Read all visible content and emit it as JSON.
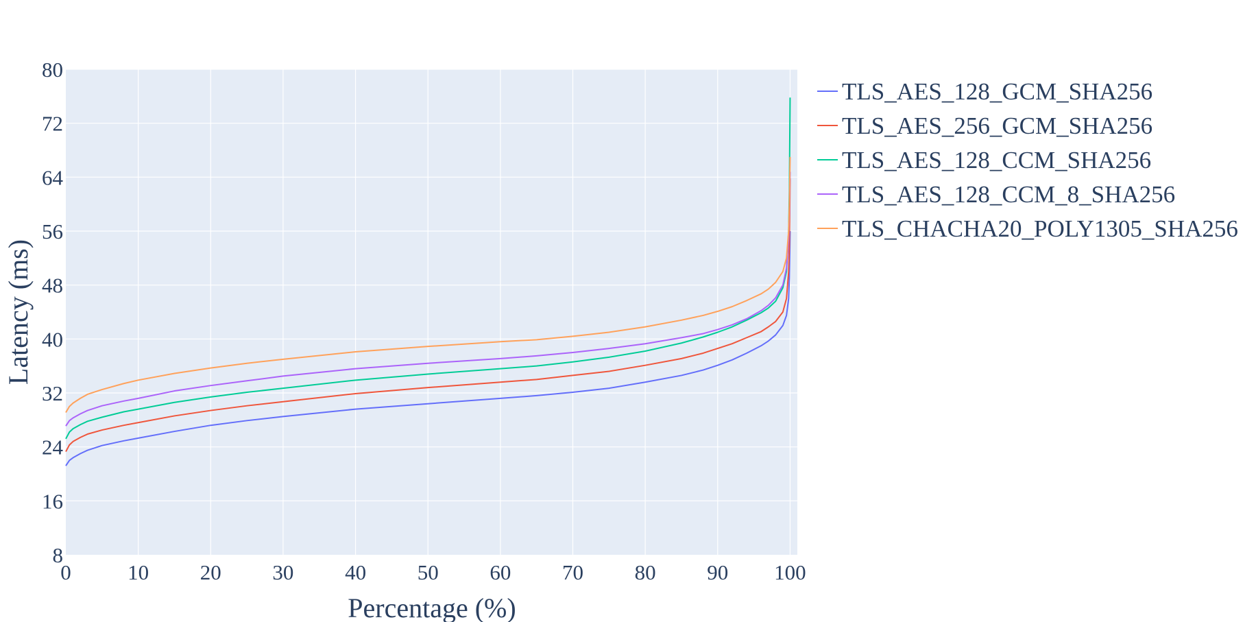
{
  "chart_data": {
    "type": "line",
    "title": "",
    "xlabel": "Percentage (%)",
    "ylabel": "Latency (ms)",
    "xlim": [
      0,
      101
    ],
    "ylim": [
      8,
      80
    ],
    "xticks": [
      0,
      10,
      20,
      30,
      40,
      50,
      60,
      70,
      80,
      90,
      100
    ],
    "yticks": [
      8,
      16,
      24,
      32,
      40,
      48,
      56,
      64,
      72,
      80
    ],
    "grid": true,
    "legend_position": "top-right, outside plot",
    "plot_background": "#e5ecf6",
    "series": [
      {
        "name": "TLS_AES_128_GCM_SHA256",
        "color": "#636efa",
        "x": [
          0,
          0.5,
          1,
          2,
          3,
          5,
          8,
          10,
          15,
          20,
          25,
          30,
          40,
          50,
          60,
          65,
          70,
          75,
          80,
          85,
          88,
          90,
          92,
          94,
          96,
          97,
          98,
          99,
          99.5,
          99.8,
          99.9,
          100
        ],
        "y": [
          21.2,
          22.0,
          22.4,
          23.0,
          23.5,
          24.2,
          24.9,
          25.3,
          26.3,
          27.2,
          27.9,
          28.5,
          29.6,
          30.4,
          31.2,
          31.6,
          32.1,
          32.7,
          33.6,
          34.6,
          35.4,
          36.1,
          36.9,
          37.9,
          39.0,
          39.7,
          40.6,
          42.0,
          43.5,
          46.0,
          49.0,
          56.0
        ]
      },
      {
        "name": "TLS_AES_256_GCM_SHA256",
        "color": "#ef553b",
        "x": [
          0,
          0.5,
          1,
          2,
          3,
          5,
          8,
          10,
          15,
          20,
          25,
          30,
          40,
          50,
          60,
          65,
          70,
          75,
          80,
          85,
          88,
          90,
          92,
          94,
          96,
          97,
          98,
          99,
          99.5,
          99.8,
          99.9,
          100
        ],
        "y": [
          23.3,
          24.3,
          24.8,
          25.4,
          25.9,
          26.5,
          27.2,
          27.6,
          28.6,
          29.4,
          30.1,
          30.7,
          31.9,
          32.8,
          33.6,
          34.0,
          34.6,
          35.2,
          36.1,
          37.1,
          37.9,
          38.6,
          39.3,
          40.2,
          41.1,
          41.8,
          42.6,
          44.0,
          46.0,
          50.0,
          54.0,
          63.8
        ]
      },
      {
        "name": "TLS_AES_128_CCM_SHA256",
        "color": "#00cc96",
        "x": [
          0,
          0.5,
          1,
          2,
          3,
          5,
          8,
          10,
          15,
          20,
          25,
          30,
          40,
          50,
          60,
          65,
          70,
          75,
          80,
          85,
          88,
          90,
          92,
          94,
          96,
          97,
          98,
          99,
          99.5,
          99.8,
          99.9,
          100
        ],
        "y": [
          25.2,
          26.2,
          26.7,
          27.3,
          27.8,
          28.4,
          29.2,
          29.6,
          30.6,
          31.4,
          32.1,
          32.7,
          33.9,
          34.8,
          35.6,
          36.0,
          36.6,
          37.3,
          38.2,
          39.4,
          40.3,
          41.0,
          41.8,
          42.8,
          43.9,
          44.6,
          45.6,
          47.6,
          50.0,
          56.0,
          62.0,
          75.8
        ]
      },
      {
        "name": "TLS_AES_128_CCM_8_SHA256",
        "color": "#ab63fa",
        "x": [
          0,
          0.5,
          1,
          2,
          3,
          5,
          8,
          10,
          15,
          20,
          25,
          30,
          40,
          50,
          60,
          65,
          70,
          75,
          80,
          85,
          88,
          90,
          92,
          94,
          96,
          97,
          98,
          99,
          99.5,
          99.8,
          99.9,
          100
        ],
        "y": [
          27.1,
          27.9,
          28.3,
          28.9,
          29.4,
          30.1,
          30.8,
          31.2,
          32.3,
          33.1,
          33.8,
          34.5,
          35.6,
          36.4,
          37.1,
          37.5,
          38.0,
          38.6,
          39.3,
          40.2,
          40.8,
          41.4,
          42.1,
          43.0,
          44.2,
          45.0,
          46.1,
          48.0,
          50.5,
          55.0,
          59.0,
          64.8
        ]
      },
      {
        "name": "TLS_CHACHA20_POLY1305_SHA256",
        "color": "#ffa15a",
        "x": [
          0,
          0.5,
          1,
          2,
          3,
          5,
          8,
          10,
          15,
          20,
          25,
          30,
          40,
          50,
          60,
          65,
          70,
          75,
          80,
          85,
          88,
          90,
          92,
          94,
          96,
          97,
          98,
          99,
          99.5,
          99.8,
          99.9,
          100
        ],
        "y": [
          29.1,
          30.0,
          30.5,
          31.2,
          31.8,
          32.5,
          33.4,
          33.9,
          34.9,
          35.7,
          36.4,
          37.0,
          38.1,
          38.9,
          39.6,
          39.9,
          40.4,
          41.0,
          41.8,
          42.8,
          43.5,
          44.1,
          44.8,
          45.7,
          46.7,
          47.4,
          48.4,
          50.0,
          52.0,
          56.0,
          60.0,
          67.0
        ]
      }
    ]
  }
}
